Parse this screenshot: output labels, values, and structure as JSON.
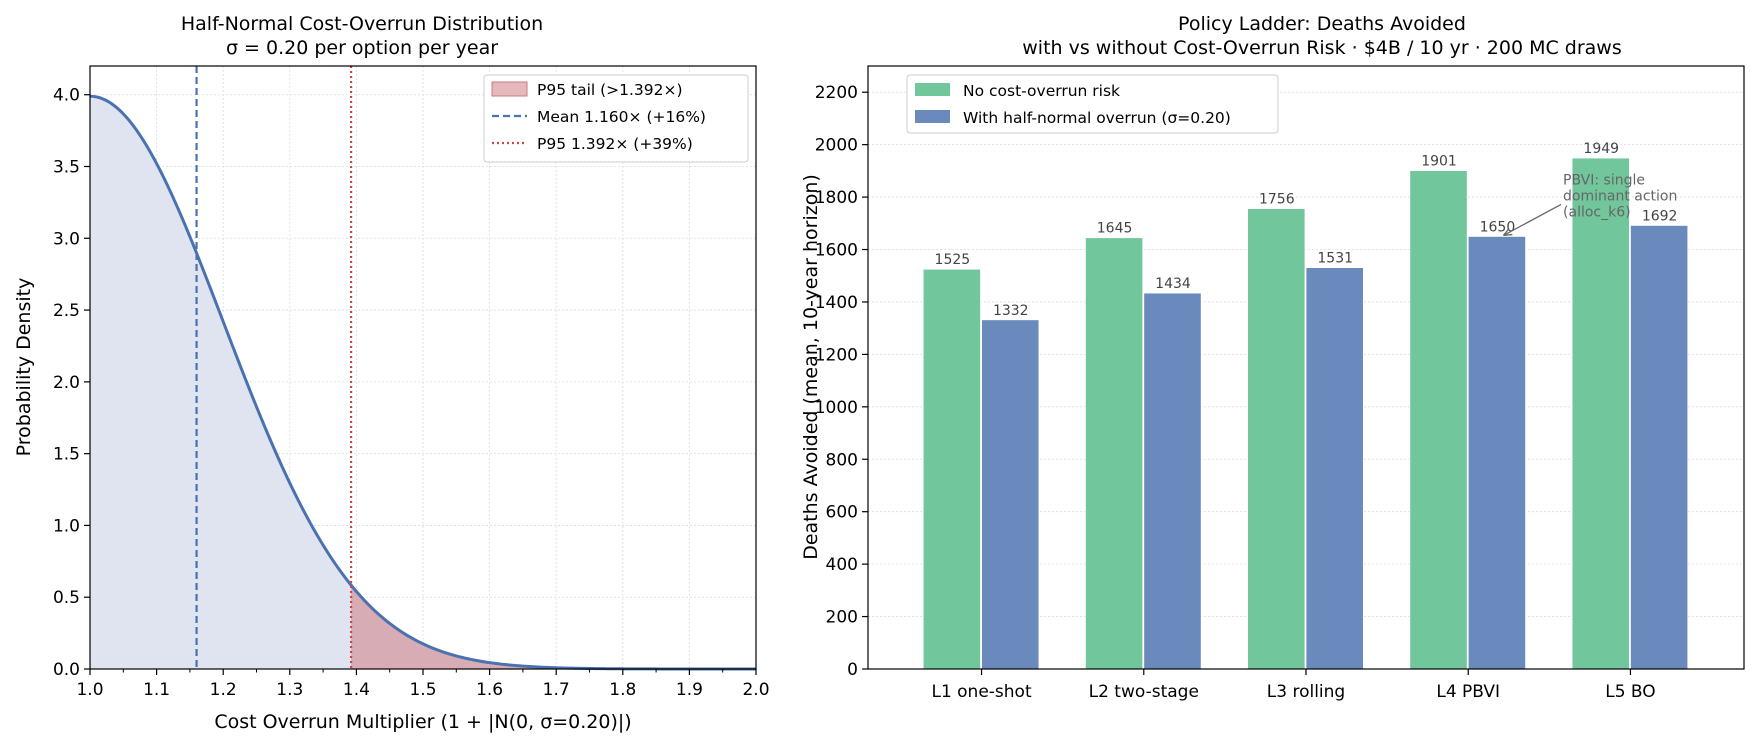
{
  "chart_data": [
    {
      "type": "area",
      "title": "Half-Normal Cost-Overrun Distribution",
      "subtitle": "σ = 0.20 per option per year",
      "xlabel": "Cost Overrun Multiplier (1 + |N(0, σ=0.20)|)",
      "ylabel": "Probability Density",
      "xlim": [
        1.0,
        2.0
      ],
      "ylim": [
        0.0,
        4.2
      ],
      "x_ticks": [
        "1.0",
        "1.1",
        "1.2",
        "1.3",
        "1.4",
        "1.5",
        "1.6",
        "1.7",
        "1.8",
        "1.9",
        "2.0"
      ],
      "y_ticks": [
        "0.0",
        "0.5",
        "1.0",
        "1.5",
        "2.0",
        "2.5",
        "3.0",
        "3.5",
        "4.0"
      ],
      "grid": true,
      "legend_position": "top-right",
      "sigma": 0.2,
      "mean": 1.16,
      "p95": 1.392,
      "legend": [
        {
          "label": "P95 tail (>1.392×)",
          "kind": "patch",
          "color": "#d9a0a6"
        },
        {
          "label": "Mean 1.160×  (+16%)",
          "kind": "dashed",
          "color": "#4a72b0"
        },
        {
          "label": "P95 1.392×  (+39%)",
          "kind": "dotted",
          "color": "#cc4444"
        }
      ],
      "colors": {
        "curve": "#4a72b0",
        "fill": "#dfe4f0",
        "tail": "#d7acb4"
      }
    },
    {
      "type": "bar",
      "title": "Policy Ladder: Deaths Avoided",
      "subtitle": "with vs without Cost-Overrun Risk · $4B / 10 yr · 200 MC draws",
      "xlabel": "",
      "ylabel": "Deaths Avoided (mean, 10-year horizon)",
      "ylim": [
        0,
        2300
      ],
      "y_ticks": [
        "0",
        "200",
        "400",
        "600",
        "800",
        "1000",
        "1200",
        "1400",
        "1600",
        "1800",
        "2000",
        "2200"
      ],
      "categories": [
        "L1 one-shot",
        "L2 two-stage",
        "L3 rolling",
        "L4 PBVI",
        "L5 BO"
      ],
      "series": [
        {
          "name": "No cost-overrun risk",
          "values": [
            1525,
            1645,
            1756,
            1901,
            1949
          ],
          "color": "#72c69b"
        },
        {
          "name": "With half-normal overrun (σ=0.20)",
          "values": [
            1332,
            1434,
            1531,
            1650,
            1692
          ],
          "color": "#6a89bc"
        }
      ],
      "data_labels": [
        [
          "1525",
          "1645",
          "1756",
          "1901",
          "1949"
        ],
        [
          "1332",
          "1434",
          "1531",
          "1650",
          "1692"
        ]
      ],
      "grid": true,
      "legend_position": "top-left",
      "annotation": {
        "lines": [
          "PBVI: single",
          "dominant action",
          "(alloc_k6)"
        ],
        "target_category": 3,
        "target_series": 1,
        "target_value": 1650
      }
    }
  ]
}
